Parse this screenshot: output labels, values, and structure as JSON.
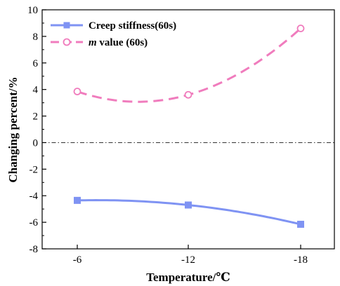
{
  "chart_data": {
    "type": "scatter",
    "x_categories": [
      "-6",
      "-12",
      "-18"
    ],
    "xlabel": "Temperature/℃",
    "ylabel": "Changing percent/%",
    "ylim": [
      -8,
      10
    ],
    "yticks": [
      -8,
      -6,
      -4,
      -2,
      0,
      2,
      4,
      6,
      8,
      10
    ],
    "grid": false,
    "legend_position": "top-left",
    "reference_line": {
      "y": 0,
      "style": "dash-dot"
    },
    "series": [
      {
        "name": "Creep stiffness(60s)",
        "marker": "filled-square",
        "line_style": "solid",
        "color": "#7f93f3",
        "values": [
          -4.35,
          -4.7,
          -6.15
        ]
      },
      {
        "name": "value (60s)",
        "name_prefix_italic": "m",
        "marker": "open-circle",
        "line_style": "dashed",
        "color": "#f07cbd",
        "values": [
          3.85,
          3.6,
          8.6
        ]
      }
    ]
  }
}
